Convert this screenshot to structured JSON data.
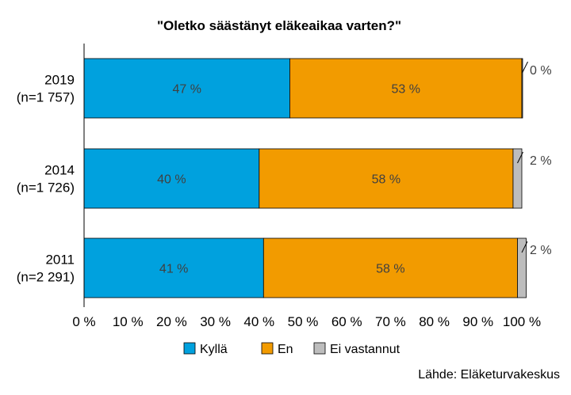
{
  "chart_data": {
    "type": "bar",
    "orientation": "horizontal",
    "stacked": true,
    "title": "\"Oletko säästänyt eläkeaikaa varten?\"",
    "categories": [
      [
        "2019",
        "(n=1 757)"
      ],
      [
        "2014",
        "(n=1 726)"
      ],
      [
        "2011",
        "(n=2 291)"
      ]
    ],
    "series": [
      {
        "name": "Kyllä",
        "color": "#00a1de",
        "values": [
          47,
          40,
          41
        ],
        "labels": [
          "47 %",
          "40 %",
          "41 %"
        ]
      },
      {
        "name": "En",
        "color": "#f29b00",
        "values": [
          53,
          58,
          58
        ],
        "labels": [
          "53 %",
          "58 %",
          "58 %"
        ]
      },
      {
        "name": "Ei vastannut",
        "color": "#bdbdbd",
        "values": [
          0,
          2,
          2
        ],
        "labels": [
          "0 %",
          "2 %",
          "2 %"
        ]
      }
    ],
    "xlim": [
      0,
      100
    ],
    "xticks": [
      0,
      10,
      20,
      30,
      40,
      50,
      60,
      70,
      80,
      90,
      100
    ],
    "xtick_labels": [
      "0 %",
      "10 %",
      "20 %",
      "30 %",
      "40 %",
      "50 %",
      "60 %",
      "70 %",
      "80 %",
      "90 %",
      "100 %"
    ],
    "grid": false,
    "legend": "bottom"
  },
  "source": "Lähde: Eläketurvakeskus"
}
